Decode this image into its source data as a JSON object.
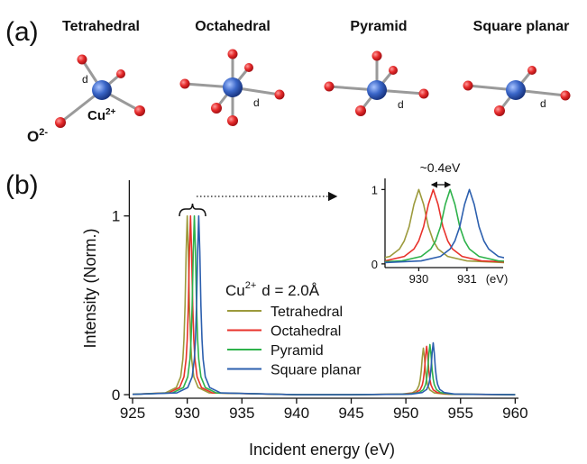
{
  "figure": {
    "panel_a": {
      "label": "(a)",
      "structures": [
        "Tetrahedral",
        "Octahedral",
        "Pyramid",
        "Square planar"
      ],
      "bond_label": "d",
      "oxygen": {
        "symbol": "O",
        "charge": "2-"
      },
      "copper": {
        "symbol": "Cu",
        "charge": "2+"
      }
    },
    "panel_b": {
      "label": "(b)"
    }
  },
  "chart_data": {
    "type": "line",
    "xlabel": "Incident energy (eV)",
    "ylabel": "Intensity (Norm.)",
    "xlim": [
      924.7,
      960.3
    ],
    "ylim": [
      -0.02,
      1.2
    ],
    "xticks": [
      925,
      930,
      935,
      940,
      945,
      950,
      955,
      960
    ],
    "yticks": [
      0,
      1
    ],
    "legend_title": {
      "ion": "Cu",
      "charge": "2+",
      "text": "d = 2.0Å"
    },
    "series": [
      {
        "name": "Tetrahedral",
        "color": "#9c9a3c",
        "x": [
          925,
          928,
          929,
          929.4,
          929.6,
          929.7,
          929.8,
          929.9,
          930,
          930.1,
          930.2,
          930.3,
          930.4,
          930.6,
          931,
          932,
          940,
          945,
          949.6,
          950.6,
          951,
          951.2,
          951.3,
          951.4,
          951.5,
          951.6,
          951.7,
          951.8,
          951.9,
          952,
          952.2,
          952.6,
          953.6,
          960
        ],
        "values": [
          0.002,
          0.01,
          0.04,
          0.1,
          0.2,
          0.31,
          0.5,
          0.8,
          1,
          0.8,
          0.5,
          0.31,
          0.2,
          0.1,
          0.04,
          0.01,
          0,
          0,
          0.003,
          0.01,
          0.026,
          0.052,
          0.081,
          0.13,
          0.208,
          0.26,
          0.208,
          0.13,
          0.081,
          0.052,
          0.026,
          0.01,
          0.003,
          0
        ]
      },
      {
        "name": "Octahedral",
        "color": "#e8322b",
        "x": [
          925,
          928.3,
          929.3,
          929.7,
          929.9,
          930,
          930.1,
          930.2,
          930.3,
          930.4,
          930.5,
          930.6,
          930.7,
          930.9,
          931.3,
          932.3,
          940,
          945,
          949.9,
          950.9,
          951.3,
          951.5,
          951.6,
          951.7,
          951.8,
          951.9,
          952,
          952.1,
          952.2,
          952.3,
          952.5,
          952.9,
          953.9,
          960
        ],
        "values": [
          0.002,
          0.01,
          0.04,
          0.1,
          0.2,
          0.31,
          0.5,
          0.8,
          1,
          0.8,
          0.5,
          0.31,
          0.2,
          0.1,
          0.04,
          0.01,
          0,
          0,
          0.003,
          0.011,
          0.027,
          0.054,
          0.084,
          0.135,
          0.216,
          0.27,
          0.216,
          0.135,
          0.084,
          0.054,
          0.027,
          0.011,
          0.003,
          0
        ]
      },
      {
        "name": "Pyramid",
        "color": "#2eb24b",
        "x": [
          925,
          928.65,
          929.65,
          930.05,
          930.25,
          930.35,
          930.45,
          930.55,
          930.65,
          930.75,
          930.85,
          930.95,
          931.05,
          931.25,
          931.65,
          932.65,
          940,
          945,
          950.2,
          951.2,
          951.6,
          951.8,
          951.9,
          952,
          952.1,
          952.2,
          952.3,
          952.4,
          952.5,
          952.6,
          952.8,
          953.2,
          954.2,
          960
        ],
        "values": [
          0.002,
          0.01,
          0.04,
          0.1,
          0.2,
          0.31,
          0.5,
          0.8,
          1,
          0.8,
          0.5,
          0.31,
          0.2,
          0.1,
          0.04,
          0.01,
          0,
          0,
          0.003,
          0.011,
          0.028,
          0.056,
          0.087,
          0.14,
          0.224,
          0.28,
          0.224,
          0.14,
          0.087,
          0.056,
          0.028,
          0.011,
          0.003,
          0
        ]
      },
      {
        "name": "Square planar",
        "color": "#2c5fae",
        "x": [
          925,
          929.05,
          930.05,
          930.45,
          930.65,
          930.75,
          930.85,
          930.95,
          931.05,
          931.15,
          931.25,
          931.35,
          931.45,
          931.65,
          932.05,
          933.05,
          940,
          945,
          950.5,
          951.5,
          951.9,
          952.1,
          952.2,
          952.3,
          952.4,
          952.5,
          952.6,
          952.7,
          952.8,
          952.9,
          953.1,
          953.5,
          954.5,
          960
        ],
        "values": [
          0.002,
          0.01,
          0.04,
          0.1,
          0.2,
          0.31,
          0.5,
          0.8,
          1,
          0.8,
          0.5,
          0.31,
          0.2,
          0.1,
          0.04,
          0.01,
          0,
          0,
          0.003,
          0.012,
          0.029,
          0.058,
          0.09,
          0.145,
          0.232,
          0.29,
          0.232,
          0.145,
          0.09,
          0.058,
          0.029,
          0.012,
          0.003,
          0
        ]
      }
    ],
    "inset": {
      "xlim": [
        929.3,
        931.75
      ],
      "ylim": [
        -0.05,
        1.15
      ],
      "xticks": [
        930,
        931
      ],
      "yticks": [
        0,
        1
      ],
      "xlabel": "(eV)",
      "annotation": "~0.4eV"
    }
  }
}
